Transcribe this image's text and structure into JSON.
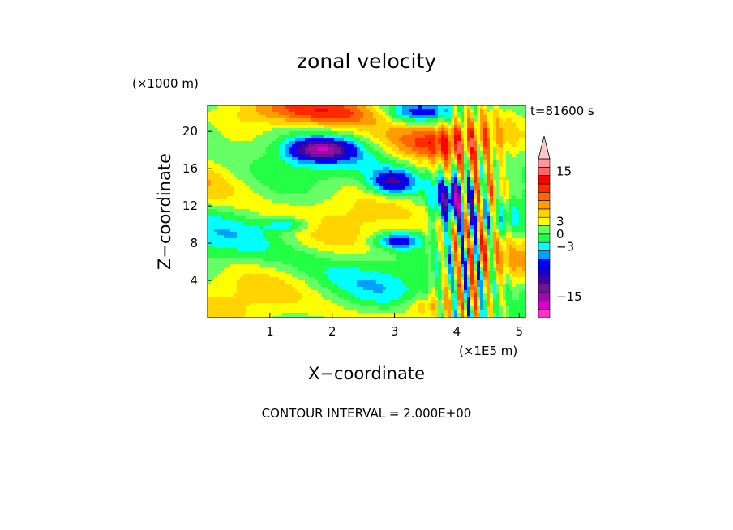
{
  "chart_data": {
    "type": "heatmap",
    "title": "zonal velocity",
    "xlabel": "X−coordinate",
    "ylabel": "Z−coordinate",
    "x_unit": "(×1E5 m)",
    "y_unit": "(×1000 m)",
    "time_label": "t=81600 s",
    "contour_note": "CONTOUR INTERVAL = 2.000E+00",
    "xlim": [
      0,
      5.1
    ],
    "ylim": [
      0,
      22.8
    ],
    "x_ticks": [
      "1",
      "2",
      "3",
      "4",
      "5"
    ],
    "y_ticks": [
      "4",
      "8",
      "12",
      "16",
      "20"
    ],
    "x_tick_values": [
      1,
      2,
      3,
      4,
      5
    ],
    "y_tick_values": [
      4,
      8,
      12,
      16,
      20
    ],
    "grid": false,
    "colorbar": {
      "levels": [
        -19,
        -17,
        -15,
        -13,
        -11,
        -9,
        -7,
        -5,
        -3,
        -1,
        1,
        3,
        5,
        7,
        9,
        11,
        13,
        15,
        17,
        19
      ],
      "colors": [
        "#ff33cc",
        "#d800c8",
        "#9e0aa8",
        "#6b1595",
        "#4400a0",
        "#1400d0",
        "#0000ff",
        "#00a0ff",
        "#00ffff",
        "#22ff44",
        "#66ff66",
        "#ffff00",
        "#ffd400",
        "#ff9c00",
        "#ff6600",
        "#ff2a00",
        "#ff0000",
        "#ff6666",
        "#ff9999",
        "#ffc8c8"
      ],
      "tick_labels": [
        "15",
        "3",
        "0",
        "−3",
        "−15"
      ],
      "tick_values": [
        15,
        3,
        0,
        -3,
        -15
      ]
    },
    "field_description": "zonal velocity field on an x–z section; strong alternating positive/negative bands near x≈4×1E5 m, negative cores near z≈18 and z≈8×1000 m"
  }
}
